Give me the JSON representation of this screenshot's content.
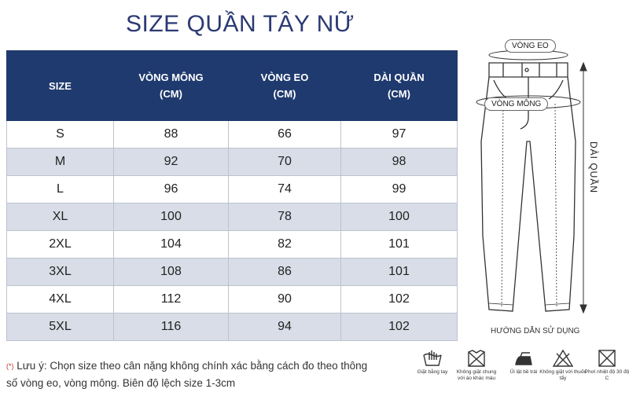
{
  "title": "SIZE QUẦN TÂY NỮ",
  "table": {
    "headers": [
      {
        "line1": "SIZE",
        "line2": ""
      },
      {
        "line1": "VÒNG MÔNG",
        "line2": "(CM)"
      },
      {
        "line1": "VÒNG EO",
        "line2": "(CM)"
      },
      {
        "line1": "DÀI QUẦN",
        "line2": "(CM)"
      }
    ],
    "rows": [
      [
        "S",
        "88",
        "66",
        "97"
      ],
      [
        "M",
        "92",
        "70",
        "98"
      ],
      [
        "L",
        "96",
        "74",
        "99"
      ],
      [
        "XL",
        "100",
        "78",
        "100"
      ],
      [
        "2XL",
        "104",
        "82",
        "101"
      ],
      [
        "3XL",
        "108",
        "86",
        "101"
      ],
      [
        "4XL",
        "112",
        "90",
        "102"
      ],
      [
        "5XL",
        "116",
        "94",
        "102"
      ]
    ]
  },
  "note": {
    "mark": "(*)",
    "text": "Lưu ý: Chọn size theo cân nặng không chính xác bằng cách đo theo thông số vòng eo, vòng mông. Biên độ lệch size 1-3cm"
  },
  "diagram": {
    "waist_label": "VÒNG EO",
    "hip_label": "VÒNG MÔNG",
    "length_label": "DÀI QUẦN"
  },
  "usage": {
    "title": "HƯỚNG DẪN SỬ DỤNG",
    "items": [
      {
        "icon": "hand-wash-icon",
        "caption": "Giặt bằng tay"
      },
      {
        "icon": "no-mix-wash-icon",
        "caption": "Không giặt chung với áo khác màu"
      },
      {
        "icon": "iron-reverse-icon",
        "caption": "Ủi lật bề trái"
      },
      {
        "icon": "no-bleach-icon",
        "caption": "Không giặt với thuốc tẩy"
      },
      {
        "icon": "dry-temp-icon",
        "caption": "Phơi nhiệt độ 30 độ C"
      }
    ]
  }
}
